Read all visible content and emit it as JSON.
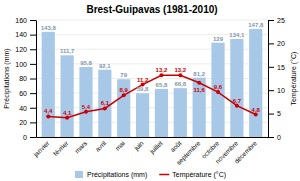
{
  "chart_data": {
    "type": "bar",
    "title": "Brest-Guipavas (1981-2010)",
    "categories": [
      "janvier",
      "février",
      "mars",
      "avril",
      "mai",
      "juin",
      "juillet",
      "août",
      "septembre",
      "octobre",
      "novembre",
      "décembre"
    ],
    "series": [
      {
        "name": "Précipitations (mm)",
        "type": "bar",
        "color": "#a8c8e8",
        "values": [
          143.8,
          111.7,
          95.8,
          92.1,
          79,
          59.8,
          65.8,
          66.8,
          81.2,
          129,
          134.1,
          147.8
        ],
        "value_labels": [
          "143,8",
          "111,7",
          "95,8",
          "92,1",
          "79",
          "59,8",
          "65,8",
          "66,8",
          "81,2",
          "129",
          "134,1",
          "147,8"
        ]
      },
      {
        "name": "Température (°C)",
        "type": "line",
        "axis": "y2",
        "color": "#cc0000",
        "marker": "circle",
        "values": [
          4.4,
          4.1,
          5.4,
          6.1,
          8.9,
          11.2,
          13.2,
          13.2,
          11.6,
          9.6,
          6.7,
          4.8
        ],
        "value_labels": [
          "4,4",
          "4,1",
          "5,4",
          "6,1",
          "8,9",
          "11,2",
          "13,2",
          "13,2",
          "11,6",
          "9,6",
          "6,7",
          "4,8"
        ]
      }
    ],
    "ylabel": "Précipitations (mm)",
    "y2label": "Température (°C)",
    "ylim": [
      0,
      160
    ],
    "yticks": [
      0,
      20,
      40,
      60,
      80,
      100,
      120,
      140,
      160
    ],
    "y2lim": [
      0,
      25
    ],
    "y2ticks": [
      0,
      5,
      10,
      15,
      20,
      25
    ],
    "grid": true,
    "data_labels": true,
    "legend": "bottom"
  }
}
